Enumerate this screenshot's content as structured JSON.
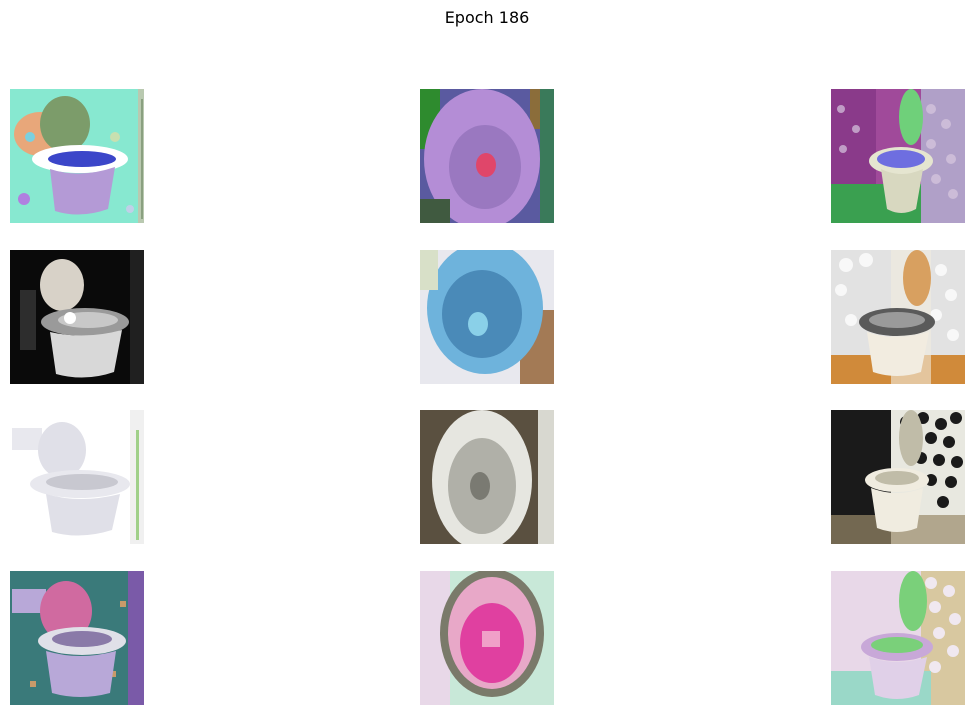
{
  "figure": {
    "title": "Epoch 186"
  },
  "grid": {
    "rows": 4,
    "cols": 3,
    "samples": [
      {
        "subject": "toilet",
        "palette": [
          "#87e8d0",
          "#e8a77a",
          "#7c9c6a",
          "#b49ad6",
          "#ffffff",
          "#3b46c9"
        ]
      },
      {
        "subject": "toilet",
        "palette": [
          "#b48dd6",
          "#2e8b2e",
          "#5a5aa0",
          "#e0466a",
          "#8b6d3a"
        ]
      },
      {
        "subject": "toilet",
        "palette": [
          "#a04a9a",
          "#6fd07a",
          "#6e6ee0",
          "#e5e5d0",
          "#3aa050"
        ]
      },
      {
        "subject": "toilet",
        "palette": [
          "#0a0a0a",
          "#d8d2c8",
          "#9a9a9a",
          "#ffffff",
          "#444444"
        ]
      },
      {
        "subject": "toilet",
        "palette": [
          "#6eb3dc",
          "#a37a55",
          "#e8e8ee",
          "#4a8ab8"
        ]
      },
      {
        "subject": "toilet",
        "palette": [
          "#e2e2e2",
          "#d08a3a",
          "#5a5a5a",
          "#f2ece0",
          "#b8702a"
        ]
      },
      {
        "subject": "toilet",
        "palette": [
          "#ffffff",
          "#e0e0e8",
          "#c8c8d0",
          "#a0d08a"
        ]
      },
      {
        "subject": "toilet",
        "palette": [
          "#5a5040",
          "#e6e6e0",
          "#b0b0a8",
          "#7a7a72"
        ]
      },
      {
        "subject": "toilet",
        "palette": [
          "#1a1a1a",
          "#f0ece0",
          "#c0bca8",
          "#9a8a6a"
        ]
      },
      {
        "subject": "toilet",
        "palette": [
          "#3a7a7a",
          "#d06aa0",
          "#b8a8d8",
          "#e0e0e8",
          "#7a5aa8"
        ]
      },
      {
        "subject": "toilet",
        "palette": [
          "#c8e8d8",
          "#e040a0",
          "#7a7a6a",
          "#e8a8c8"
        ]
      },
      {
        "subject": "toilet",
        "palette": [
          "#e8d8e8",
          "#7ad07a",
          "#9ad8c8",
          "#c8a8d8",
          "#d8c8a0"
        ]
      }
    ]
  }
}
